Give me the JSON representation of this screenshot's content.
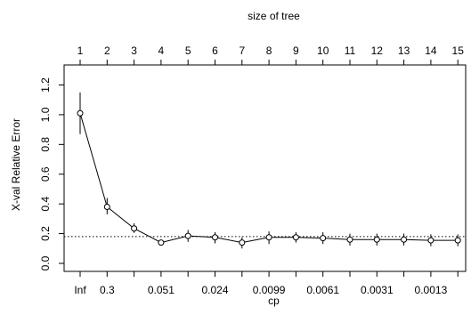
{
  "chart_data": {
    "type": "line",
    "title": "",
    "top_axis_title": "size of tree",
    "xlabel": "cp",
    "ylabel": "X-val Relative Error",
    "size_of_tree": [
      "1",
      "2",
      "3",
      "4",
      "5",
      "6",
      "7",
      "8",
      "9",
      "10",
      "11",
      "12",
      "13",
      "14",
      "15"
    ],
    "cp_tick_labels": [
      "Inf",
      "0.3",
      "",
      "0.051",
      "",
      "0.024",
      "",
      "0.0099",
      "",
      "0.0061",
      "",
      "0.0031",
      "",
      "0.0013",
      ""
    ],
    "ylim": [
      -0.05,
      1.3
    ],
    "yticks": [
      0.0,
      0.2,
      0.4,
      0.6,
      0.8,
      1.0,
      1.2
    ],
    "ytick_labels": [
      "0.0",
      "0.2",
      "0.4",
      "0.6",
      "0.8",
      "1.0",
      "1.2"
    ],
    "reference_line_y": 0.18,
    "series": [
      {
        "values": [
          1.01,
          0.38,
          0.235,
          0.14,
          0.185,
          0.175,
          0.14,
          0.175,
          0.175,
          0.17,
          0.16,
          0.16,
          0.16,
          0.155,
          0.155
        ],
        "err_low": [
          0.87,
          0.33,
          0.205,
          0.12,
          0.145,
          0.135,
          0.1,
          0.13,
          0.14,
          0.13,
          0.12,
          0.12,
          0.12,
          0.115,
          0.115
        ],
        "err_high": [
          1.15,
          0.44,
          0.27,
          0.155,
          0.225,
          0.21,
          0.175,
          0.215,
          0.21,
          0.21,
          0.2,
          0.2,
          0.2,
          0.195,
          0.195
        ]
      }
    ],
    "grid": false,
    "legend": "none"
  }
}
